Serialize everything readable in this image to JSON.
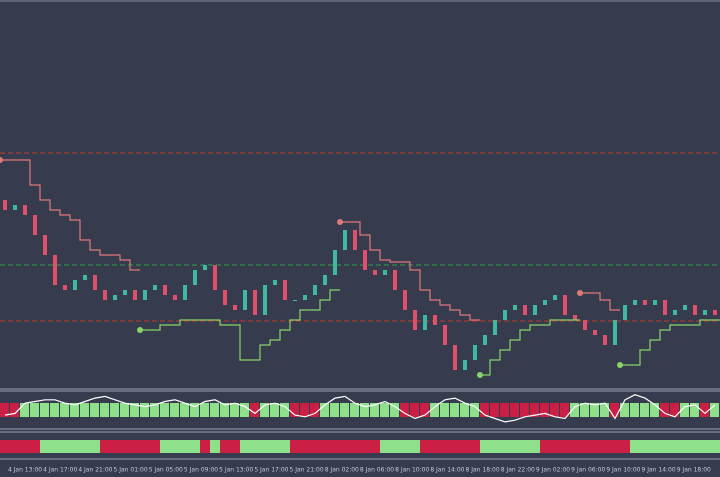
{
  "chart_data": {
    "type": "candlestick",
    "ylim": [
      12,
      400
    ],
    "open": [
      200,
      190,
      195,
      185,
      165,
      145,
      115,
      110,
      120,
      125,
      110,
      100,
      105,
      110,
      100,
      110,
      115,
      105,
      100,
      115,
      130,
      135,
      110,
      95,
      90,
      110,
      85,
      115,
      120,
      100,
      100,
      105,
      115,
      125,
      150,
      170,
      150,
      130,
      125,
      130,
      110,
      90,
      70,
      85,
      75,
      55,
      30,
      40,
      55,
      65,
      80,
      90,
      95,
      85,
      95,
      100,
      105,
      85,
      80,
      70,
      65,
      55,
      80,
      95,
      100,
      95,
      100,
      85,
      90,
      95,
      85,
      90
    ],
    "close": [
      190,
      195,
      185,
      165,
      145,
      115,
      110,
      120,
      125,
      110,
      100,
      105,
      110,
      100,
      110,
      115,
      105,
      100,
      115,
      130,
      135,
      110,
      95,
      90,
      110,
      85,
      115,
      120,
      100,
      100,
      105,
      115,
      125,
      150,
      170,
      150,
      130,
      125,
      130,
      110,
      90,
      70,
      85,
      75,
      55,
      30,
      40,
      55,
      65,
      80,
      90,
      95,
      85,
      95,
      100,
      105,
      85,
      80,
      70,
      65,
      55,
      80,
      95,
      100,
      95,
      100,
      85,
      90,
      95,
      85,
      90,
      85
    ],
    "up_color": "#3fb8a0",
    "down_color": "#e0506a",
    "upper_stop": {
      "color": "#e07a78",
      "values": [
        240,
        240,
        240,
        215,
        200,
        190,
        185,
        180,
        160,
        150,
        145,
        145,
        140,
        130,
        null,
        null,
        null,
        null,
        null,
        null,
        null,
        null,
        null,
        null,
        null,
        null,
        null,
        null,
        null,
        null,
        null,
        null,
        null,
        null,
        178,
        178,
        165,
        150,
        140,
        138,
        138,
        130,
        110,
        100,
        95,
        90,
        85,
        80,
        null,
        null,
        null,
        null,
        null,
        null,
        null,
        null,
        null,
        null,
        107,
        107,
        100,
        90,
        null,
        null,
        null,
        null,
        null,
        null,
        null,
        null,
        null,
        null
      ]
    },
    "lower_stop": {
      "color": "#86d46a",
      "values": [
        null,
        null,
        null,
        null,
        null,
        null,
        null,
        null,
        null,
        null,
        null,
        null,
        null,
        null,
        70,
        70,
        75,
        75,
        80,
        80,
        80,
        80,
        75,
        75,
        40,
        40,
        55,
        60,
        70,
        80,
        90,
        90,
        100,
        110,
        null,
        null,
        null,
        null,
        null,
        null,
        null,
        null,
        null,
        null,
        null,
        null,
        null,
        null,
        25,
        40,
        50,
        60,
        70,
        75,
        75,
        80,
        80,
        80,
        null,
        null,
        null,
        null,
        35,
        35,
        50,
        60,
        70,
        75,
        75,
        75,
        80,
        80
      ]
    },
    "levels": [
      {
        "value": 247,
        "color": "#c0392b"
      },
      {
        "value": 135,
        "color": "#2e9e4a"
      },
      {
        "value": 79,
        "color": "#c0392b"
      }
    ],
    "oscillator": {
      "ylim": [
        -1,
        1
      ],
      "line_color": "#ffffff",
      "positive_color": "#8fe08a",
      "negative_color": "#cc1f45",
      "values": [
        -0.3,
        -0.2,
        0.4,
        0.5,
        0.6,
        0.6,
        0.4,
        0.3,
        0.5,
        0.7,
        0.8,
        0.6,
        0.4,
        0.3,
        0.2,
        0.3,
        0.5,
        0.6,
        0.4,
        0.2,
        0.5,
        0.6,
        0.3,
        0.4,
        0.2,
        -0.2,
        0.3,
        0.4,
        0.2,
        -0.3,
        -0.4,
        -0.2,
        0.3,
        0.7,
        0.8,
        0.4,
        0.2,
        0.3,
        0.5,
        0.2,
        -0.2,
        -0.5,
        -0.3,
        0.2,
        0.6,
        0.7,
        0.4,
        0.2,
        -0.3,
        -0.5,
        -0.7,
        -0.6,
        -0.4,
        -0.3,
        -0.2,
        -0.4,
        -0.5,
        0.2,
        0.4,
        0.3,
        0.4,
        -0.5,
        0.6,
        0.9,
        0.7,
        0.3,
        -0.2,
        -0.4,
        0.2,
        0.3,
        -0.2,
        0.3
      ]
    },
    "trend": {
      "positive_color": "#8fe08a",
      "negative_color": "#cc1f45",
      "values": [
        -1,
        -1,
        -1,
        -1,
        1,
        1,
        1,
        1,
        1,
        1,
        -1,
        -1,
        -1,
        -1,
        -1,
        -1,
        1,
        1,
        1,
        1,
        -1,
        1,
        -1,
        -1,
        1,
        1,
        1,
        1,
        1,
        -1,
        -1,
        -1,
        -1,
        -1,
        -1,
        -1,
        -1,
        -1,
        1,
        1,
        1,
        1,
        -1,
        -1,
        -1,
        -1,
        -1,
        -1,
        1,
        1,
        1,
        1,
        1,
        1,
        -1,
        -1,
        -1,
        -1,
        -1,
        -1,
        -1,
        -1,
        -1,
        1,
        1,
        1,
        1,
        1,
        1,
        1,
        1,
        1
      ]
    },
    "x_tick_labels": [
      "4 Jan 13:00",
      "4 Jan 17:00",
      "4 Jan 21:00",
      "5 Jan 01:00",
      "5 Jan 05:00",
      "5 Jan 09:00",
      "5 Jan 13:00",
      "5 Jan 17:00",
      "5 Jan 21:00",
      "8 Jan 02:00",
      "8 Jan 06:00",
      "8 Jan 10:00",
      "8 Jan 14:00",
      "8 Jan 18:00",
      "8 Jan 22:00",
      "9 Jan 02:00",
      "9 Jan 06:00",
      "9 Jan 10:00",
      "9 Jan 14:00",
      "9 Jan 18:00"
    ]
  }
}
